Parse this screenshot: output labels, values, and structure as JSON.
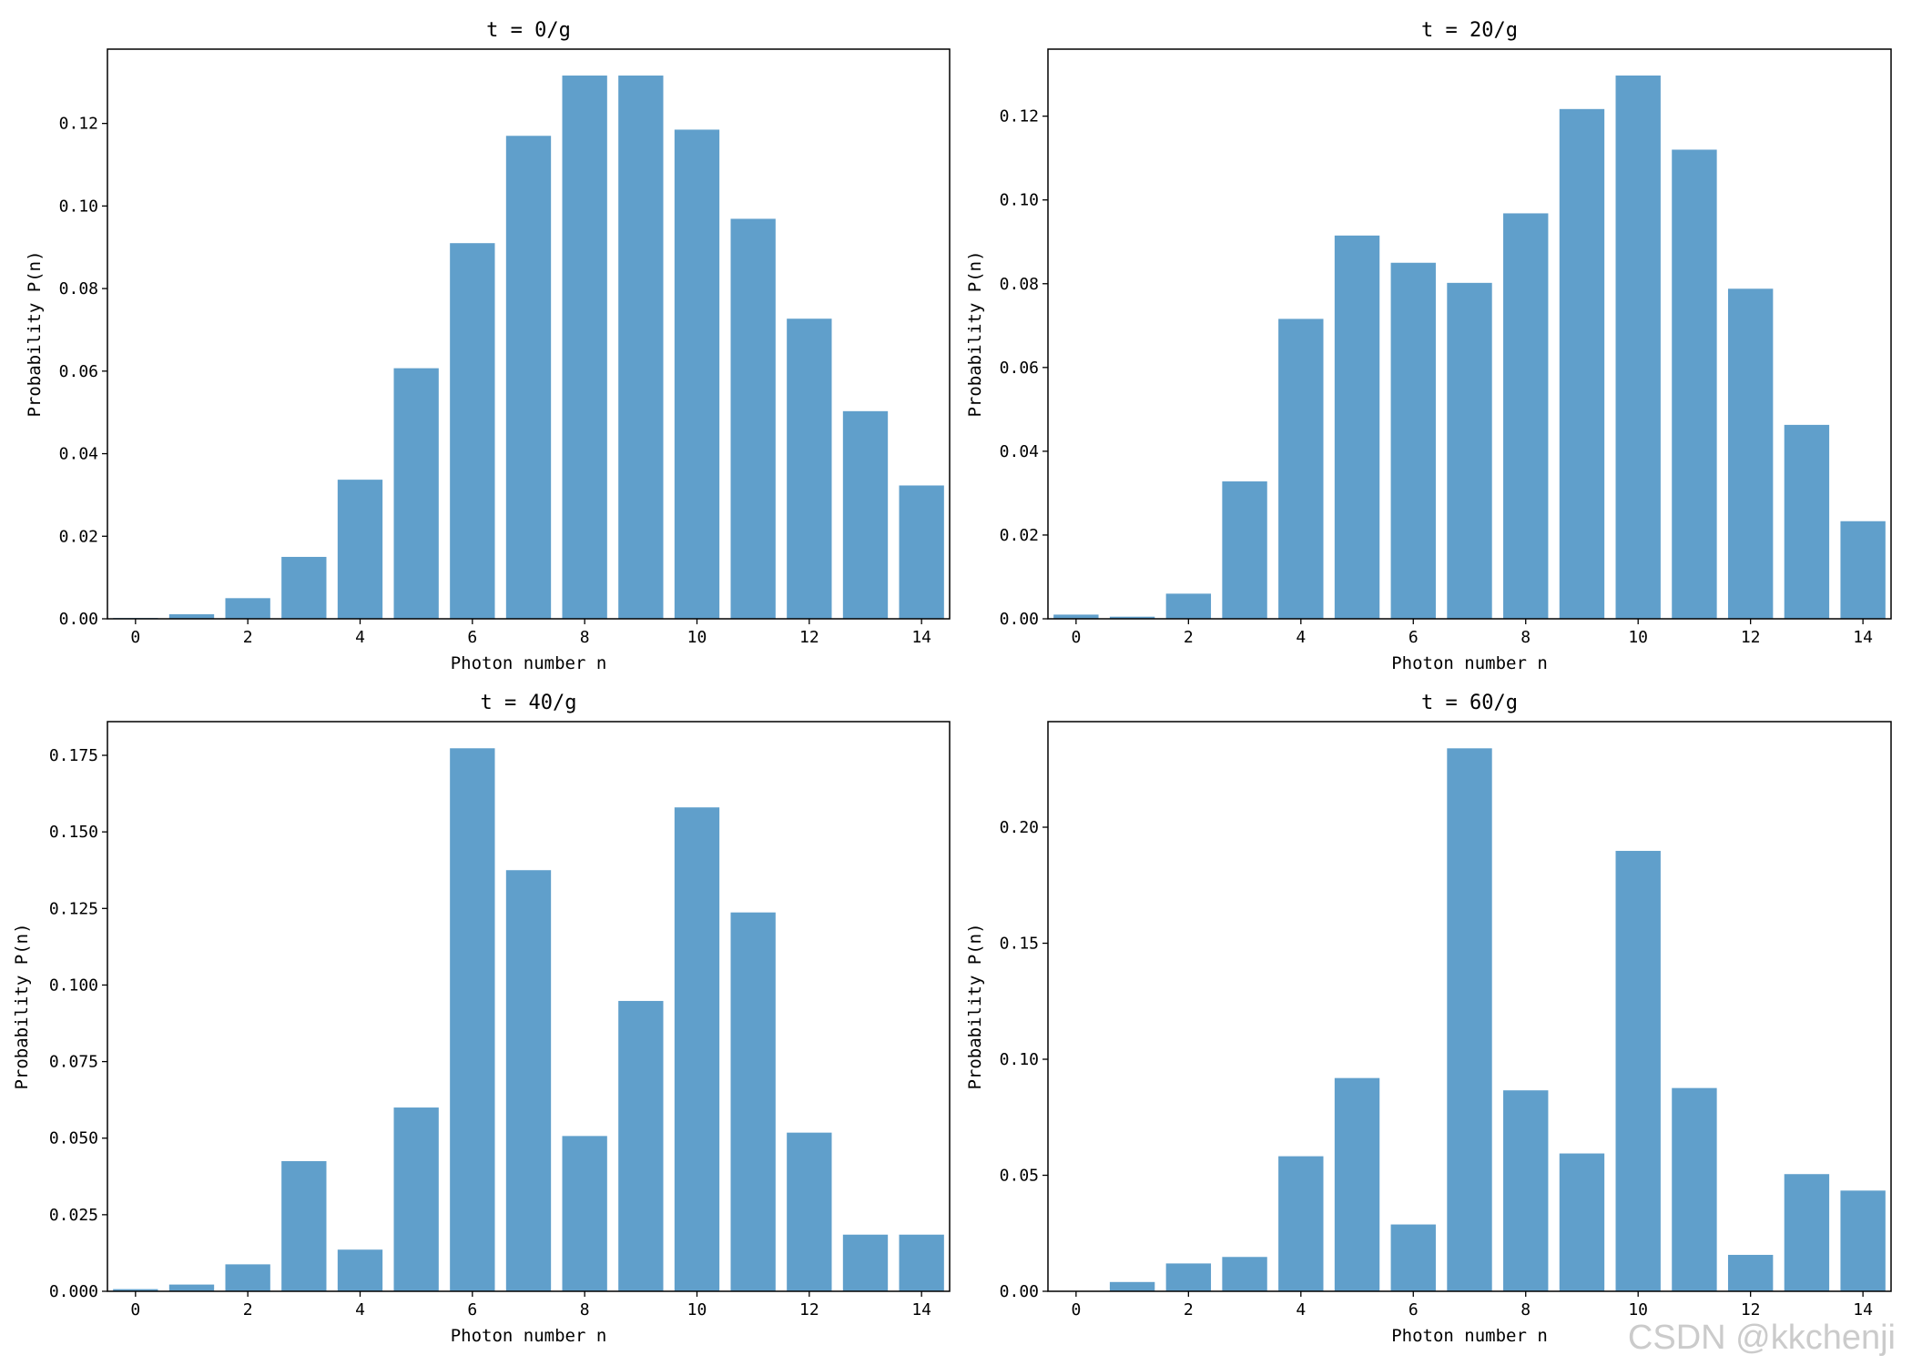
{
  "figure": {
    "watermark": "CSDN @kkchenji",
    "bar_color": "#609fcb"
  },
  "chart_data": [
    {
      "type": "bar",
      "title": "t = 0/g",
      "xlabel": "Photon number n",
      "ylabel": "Probability P(n)",
      "categories": [
        0,
        1,
        2,
        3,
        4,
        5,
        6,
        7,
        8,
        9,
        10,
        11,
        12,
        13,
        14
      ],
      "values": [
        0.0002,
        0.0011,
        0.005,
        0.015,
        0.0337,
        0.0607,
        0.091,
        0.117,
        0.1316,
        0.1316,
        0.1185,
        0.0969,
        0.0727,
        0.0503,
        0.0323
      ],
      "xticks": [
        0,
        2,
        4,
        6,
        8,
        10,
        12,
        14
      ],
      "xtick_labels": [
        "0",
        "2",
        "4",
        "6",
        "8",
        "10",
        "12",
        "14"
      ],
      "yticks": [
        0,
        0.02,
        0.04,
        0.06,
        0.08,
        0.1,
        0.12
      ],
      "ytick_labels": [
        "0.00",
        "0.02",
        "0.04",
        "0.06",
        "0.08",
        "0.10",
        "0.12"
      ],
      "xlim": [
        -0.5,
        14.5
      ],
      "ylim": [
        0,
        0.138
      ]
    },
    {
      "type": "bar",
      "title": "t = 20/g",
      "xlabel": "Photon number n",
      "ylabel": "Probability P(n)",
      "categories": [
        0,
        1,
        2,
        3,
        4,
        5,
        6,
        7,
        8,
        9,
        10,
        11,
        12,
        13,
        14
      ],
      "values": [
        0.001,
        0.0005,
        0.006,
        0.0328,
        0.0716,
        0.0915,
        0.085,
        0.0802,
        0.0968,
        0.1217,
        0.1297,
        0.112,
        0.0788,
        0.0463,
        0.0233
      ],
      "xticks": [
        0,
        2,
        4,
        6,
        8,
        10,
        12,
        14
      ],
      "xtick_labels": [
        "0",
        "2",
        "4",
        "6",
        "8",
        "10",
        "12",
        "14"
      ],
      "yticks": [
        0,
        0.02,
        0.04,
        0.06,
        0.08,
        0.1,
        0.12
      ],
      "ytick_labels": [
        "0.00",
        "0.02",
        "0.04",
        "0.06",
        "0.08",
        "0.10",
        "0.12"
      ],
      "xlim": [
        -0.5,
        14.5
      ],
      "ylim": [
        0,
        0.136
      ]
    },
    {
      "type": "bar",
      "title": "t = 40/g",
      "xlabel": "Photon number n",
      "ylabel": "Probability P(n)",
      "categories": [
        0,
        1,
        2,
        3,
        4,
        5,
        6,
        7,
        8,
        9,
        10,
        11,
        12,
        13,
        14
      ],
      "values": [
        0.0007,
        0.0022,
        0.0088,
        0.0425,
        0.0136,
        0.06,
        0.1773,
        0.1375,
        0.0507,
        0.0948,
        0.158,
        0.1237,
        0.0518,
        0.0185,
        0.0185
      ],
      "xticks": [
        0,
        2,
        4,
        6,
        8,
        10,
        12,
        14
      ],
      "xtick_labels": [
        "0",
        "2",
        "4",
        "6",
        "8",
        "10",
        "12",
        "14"
      ],
      "yticks": [
        0,
        0.025,
        0.05,
        0.075,
        0.1,
        0.125,
        0.15,
        0.175
      ],
      "ytick_labels": [
        "0.000",
        "0.025",
        "0.050",
        "0.075",
        "0.100",
        "0.125",
        "0.150",
        "0.175"
      ],
      "xlim": [
        -0.5,
        14.5
      ],
      "ylim": [
        0,
        0.186
      ]
    },
    {
      "type": "bar",
      "title": "t = 60/g",
      "xlabel": "Photon number n",
      "ylabel": "Probability P(n)",
      "categories": [
        0,
        1,
        2,
        3,
        4,
        5,
        6,
        7,
        8,
        9,
        10,
        11,
        12,
        13,
        14
      ],
      "values": [
        0.0,
        0.004,
        0.012,
        0.0148,
        0.0582,
        0.0919,
        0.0288,
        0.234,
        0.0866,
        0.0594,
        0.1898,
        0.0876,
        0.0157,
        0.0505,
        0.0434
      ],
      "xticks": [
        0,
        2,
        4,
        6,
        8,
        10,
        12,
        14
      ],
      "xtick_labels": [
        "0",
        "2",
        "4",
        "6",
        "8",
        "10",
        "12",
        "14"
      ],
      "yticks": [
        0,
        0.05,
        0.1,
        0.15,
        0.2
      ],
      "ytick_labels": [
        "0.00",
        "0.05",
        "0.10",
        "0.15",
        "0.20"
      ],
      "xlim": [
        -0.5,
        14.5
      ],
      "ylim": [
        0,
        0.2455
      ]
    }
  ]
}
